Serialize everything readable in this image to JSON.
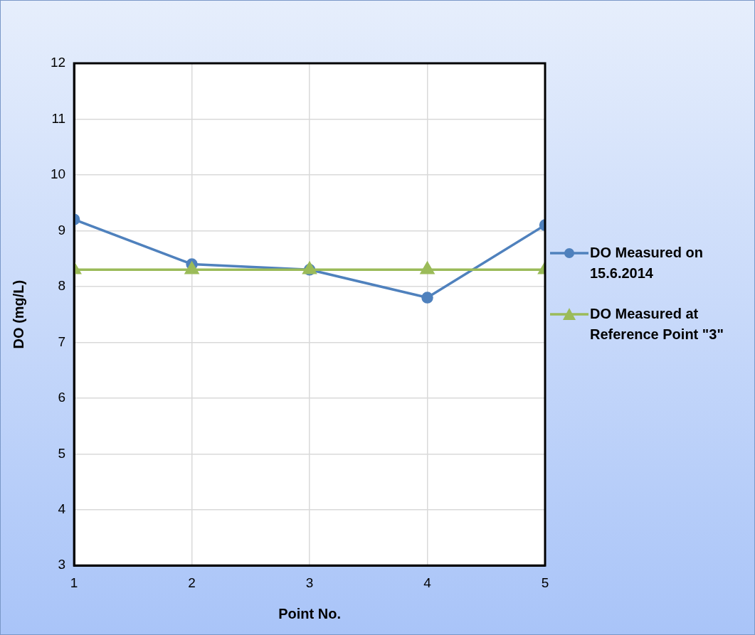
{
  "chart_data": {
    "type": "line",
    "xlabel": "Point No.",
    "ylabel": "DO (mg/L)",
    "x": [
      1,
      2,
      3,
      4,
      5
    ],
    "series": [
      {
        "name": "DO Measured on 15.6.2014",
        "color": "#4f81bd",
        "marker": "circle",
        "values": [
          9.2,
          8.4,
          8.3,
          7.8,
          9.1
        ]
      },
      {
        "name": "DO Measured at Reference Point \"3\"",
        "color": "#9bbb59",
        "marker": "triangle",
        "values": [
          8.3,
          8.3,
          8.3,
          8.3,
          8.3
        ]
      }
    ],
    "xlim": [
      1,
      5
    ],
    "xticks": [
      1,
      2,
      3,
      4,
      5
    ],
    "ylim": [
      3,
      12
    ],
    "yticks": [
      3,
      4,
      5,
      6,
      7,
      8,
      9,
      10,
      11,
      12
    ],
    "grid": true,
    "legend": "right",
    "line_style": "solid"
  }
}
